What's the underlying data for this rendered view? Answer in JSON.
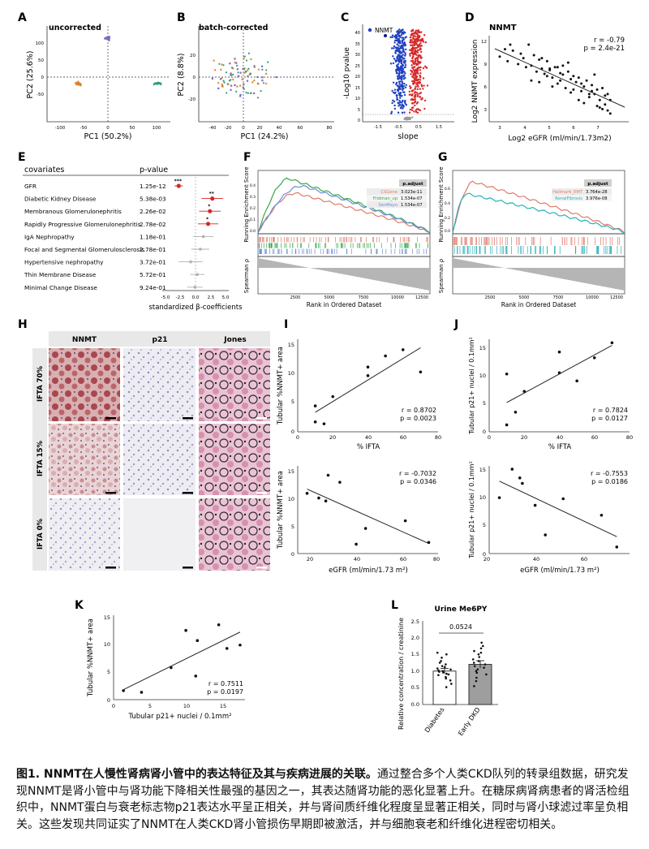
{
  "panels": {
    "A": {
      "letter": "A",
      "title": "uncorrected",
      "xlabel": "PC1 (50.2%)",
      "ylabel": "PC2 (25.6%)",
      "xticks": [
        "-100",
        "-50",
        "0",
        "50",
        "100"
      ],
      "yticks": [
        "100",
        "50",
        "0",
        "-50"
      ]
    },
    "B": {
      "letter": "B",
      "title": "batch-corrected",
      "xlabel": "PC1 (24.2%)",
      "ylabel": "PC2 (8.8%)",
      "xticks": [
        "-40",
        "-20",
        "0",
        "20",
        "40",
        "60",
        "80"
      ],
      "yticks": [
        "20",
        "0",
        "-20"
      ]
    },
    "C": {
      "letter": "C",
      "legend": "NNMT",
      "xlabel": "slope",
      "ylabel": "-Log10 pvalue",
      "yticks": [
        "40",
        "35",
        "30",
        "25",
        "20",
        "15",
        "10",
        "5",
        "0"
      ],
      "xticks": [
        "-1.5",
        "-0.5",
        "0.5",
        "1.5"
      ]
    },
    "D": {
      "letter": "D",
      "title": "NNMT",
      "stat_r": "r = -0.79",
      "stat_p": "p = 2.4e-21",
      "xlabel": "Log2 eGFR (ml/min/1.73m2)",
      "ylabel": "Log2 NNMT expression",
      "xticks": [
        "3",
        "4",
        "5",
        "6",
        "7"
      ],
      "yticks": [
        "12",
        "9",
        "6",
        "3"
      ]
    },
    "E": {
      "letter": "E",
      "col1": "covariates",
      "col2": "p-value",
      "xlabel": "standardized β-coefficients",
      "xticks": [
        "-5.0",
        "-2.5",
        "0.0",
        "2.5",
        "5.0"
      ],
      "rows": [
        {
          "name": "GFR",
          "p": "1.25e-12",
          "sig": "***"
        },
        {
          "name": "Diabetic Kidney Disease",
          "p": "5.38e-03",
          "sig": "**"
        },
        {
          "name": "Membranous Glomerulonephritis",
          "p": "2.26e-02",
          "sig": "*"
        },
        {
          "name": "Rapidly Progressive Glomerulonephritis",
          "p": "2.78e-02",
          "sig": "*"
        },
        {
          "name": "IgA Nephropathy",
          "p": "1.18e-01",
          "sig": ""
        },
        {
          "name": "Focal and Segmental Glomerulosclerosis",
          "p": "2.78e-01",
          "sig": ""
        },
        {
          "name": "Hypertensive nephropathy",
          "p": "3.72e-01",
          "sig": ""
        },
        {
          "name": "Thin Membrane Disease",
          "p": "5.72e-01",
          "sig": ""
        },
        {
          "name": "Minimal Change Disease",
          "p": "9.24e-01",
          "sig": ""
        }
      ]
    },
    "F": {
      "letter": "F",
      "ylabel_top": "Running Enrichment Score",
      "ylabel_bottom": "Spearman ρ",
      "xlabel": "Rank in Ordered Dataset",
      "xticks": [
        "2500",
        "5000",
        "7500",
        "10000",
        "12500"
      ],
      "yticks": [
        "0.4",
        "0.3",
        "0.2",
        "0.1",
        "0.0"
      ],
      "table_header": "p.adjust",
      "table": [
        {
          "name": "CSGene",
          "val": "3.023e-11",
          "color": "#e07a6a"
        },
        {
          "name": "Fridman_up",
          "val": "1.534e-07",
          "color": "#3aa84a"
        },
        {
          "name": "SenMayo",
          "val": "1.534e-07",
          "color": "#6a8ed8"
        }
      ]
    },
    "G": {
      "letter": "G",
      "ylabel_top": "Running Enrichment Score",
      "ylabel_bottom": "Spearman ρ",
      "xlabel": "Rank in Ordered Dataset",
      "xticks": [
        "2500",
        "5000",
        "7500",
        "10000",
        "12500"
      ],
      "yticks": [
        "0.6",
        "0.4",
        "0.2",
        "0.0"
      ],
      "table_header": "p.adjust",
      "table": [
        {
          "name": "Hallmark_EMT",
          "val": "3.764e-28",
          "color": "#e07a6a"
        },
        {
          "name": "RenalFibrosis",
          "val": "3.976e-08",
          "color": "#2ab0b8"
        }
      ]
    },
    "H": {
      "letter": "H",
      "cols": [
        "NNMT",
        "p21",
        "Jones"
      ],
      "rows": [
        "IFTA 70%",
        "IFTA 15%",
        "IFTA 0%"
      ]
    },
    "I": {
      "letter": "I",
      "top": {
        "r": "r = 0.8702",
        "p": "p = 0.0023",
        "xlabel": "% IFTA",
        "ylabel": "Tubular %NNMT+ area",
        "xticks": [
          "0",
          "20",
          "40",
          "60",
          "80"
        ],
        "yticks": [
          "15",
          "10",
          "5",
          "0"
        ]
      },
      "bottom": {
        "r": "r = -0.7032",
        "p": "p = 0.0346",
        "xlabel": "eGFR (ml/min/1.73 m²)",
        "ylabel": "Tubular %NNMT+ area",
        "xticks": [
          "20",
          "40",
          "60",
          "80"
        ],
        "yticks": [
          "15",
          "10",
          "5",
          "0"
        ]
      }
    },
    "J": {
      "letter": "J",
      "top": {
        "r": "r = 0.7824",
        "p": "p = 0.0127",
        "xlabel": "% IFTA",
        "ylabel": "Tubular p21+ nuclei / 0.1mm²",
        "xticks": [
          "0",
          "20",
          "40",
          "60",
          "80"
        ],
        "yticks": [
          "15",
          "10",
          "5",
          "0"
        ]
      },
      "bottom": {
        "r": "r = -0.7553",
        "p": "p = 0.0186",
        "xlabel": "eGFR (ml/min/1.73 m²)",
        "ylabel": "Tubular p21+ nuclei / 0.1mm²",
        "xticks": [
          "20",
          "40",
          "60"
        ],
        "yticks": [
          "15",
          "10",
          "5",
          "0"
        ]
      }
    },
    "K": {
      "letter": "K",
      "r": "r = 0.7511",
      "p": "p = 0.0197",
      "xlabel": "Tubular p21+ nuclei / 0.1mm²",
      "ylabel": "Tubular %NNMT+ area",
      "xticks": [
        "0",
        "5",
        "10",
        "15"
      ],
      "yticks": [
        "15",
        "10",
        "5",
        "0"
      ]
    },
    "L": {
      "letter": "L",
      "title": "Urine Me6PY",
      "pval": "0.0524",
      "ylabel": "Relative concentration / creatinine",
      "groups": [
        "Diabetes",
        "Early DKD"
      ],
      "yticks": [
        "2.5",
        "2.0",
        "1.5",
        "1.0",
        "0.5",
        "0.0"
      ]
    }
  },
  "chart_data": [
    {
      "type": "scatter",
      "panel": "D",
      "title": "NNMT",
      "xlabel": "Log2 eGFR (ml/min/1.73m2)",
      "ylabel": "Log2 NNMT expression",
      "xlim": [
        2.6,
        7.9
      ],
      "ylim": [
        1.5,
        13
      ],
      "x": [
        3.0,
        3.2,
        3.3,
        3.5,
        3.7,
        3.8,
        4.0,
        4.1,
        4.2,
        4.3,
        4.4,
        4.5,
        4.6,
        4.7,
        4.8,
        4.9,
        5.0,
        5.1,
        5.2,
        5.3,
        5.4,
        5.5,
        5.6,
        5.7,
        5.8,
        5.9,
        6.0,
        6.1,
        6.2,
        6.3,
        6.4,
        6.5,
        6.6,
        6.7,
        6.8,
        6.9,
        7.0,
        7.1,
        7.2,
        4.2,
        4.6,
        5.0,
        5.4,
        5.8,
        6.2,
        6.6,
        7.0,
        6.9,
        6.5,
        6.1,
        5.7,
        5.3,
        4.9,
        4.5,
        3.9,
        3.4,
        6.7,
        7.1,
        5.6,
        6.4,
        6.0,
        6.8,
        7.2,
        4.8,
        5.2
      ],
      "y": [
        10.2,
        11.2,
        9.6,
        11.0,
        9.2,
        10.6,
        8.8,
        11.8,
        9.0,
        10.4,
        8.2,
        9.8,
        8.6,
        7.9,
        9.6,
        8.4,
        7.4,
        8.8,
        6.6,
        8.0,
        7.8,
        6.0,
        8.2,
        7.2,
        5.8,
        6.8,
        7.4,
        5.6,
        6.2,
        7.0,
        4.8,
        6.4,
        5.2,
        5.8,
        4.4,
        6.0,
        3.8,
        5.2,
        4.4,
        7.0,
        10.0,
        6.2,
        9.0,
        7.6,
        4.0,
        7.8,
        5.0,
        3.2,
        5.6,
        6.6,
        5.4,
        7.0,
        8.6,
        6.8,
        10.0,
        11.8,
        3.6,
        3.0,
        9.4,
        5.2,
        4.4,
        3.4,
        2.6,
        7.6,
        8.8
      ]
    },
    {
      "type": "scatter",
      "panel": "I-top",
      "xlabel": "% IFTA",
      "ylabel": "Tubular %NNMT+ area",
      "xlim": [
        0,
        80
      ],
      "ylim": [
        0,
        15
      ],
      "x": [
        10,
        10,
        15,
        20,
        40,
        40,
        50,
        60,
        70
      ],
      "y": [
        4.2,
        1.6,
        1.3,
        5.7,
        9.1,
        10.5,
        12.3,
        13.3,
        9.7
      ],
      "r": 0.8702,
      "p": 0.0023
    },
    {
      "type": "scatter",
      "panel": "I-bottom",
      "xlabel": "eGFR (ml/min/1.73 m²)",
      "ylabel": "Tubular %NNMT+ area",
      "xlim": [
        20,
        80
      ],
      "ylim": [
        0,
        15
      ],
      "x": [
        24,
        29,
        32,
        33,
        38,
        45,
        49,
        66,
        76
      ],
      "y": [
        10.3,
        9.5,
        9.0,
        13.4,
        12.2,
        1.6,
        4.3,
        5.6,
        1.9
      ],
      "r": -0.7032,
      "p": 0.0346
    },
    {
      "type": "scatter",
      "panel": "J-top",
      "xlabel": "% IFTA",
      "ylabel": "Tubular p21+ nuclei / 0.1mm²",
      "xlim": [
        0,
        80
      ],
      "ylim": [
        0,
        16
      ],
      "x": [
        10,
        10,
        15,
        20,
        40,
        40,
        50,
        60,
        70
      ],
      "y": [
        10.0,
        1.2,
        3.4,
        7.0,
        13.8,
        10.2,
        8.8,
        12.8,
        15.4
      ],
      "r": 0.7824,
      "p": 0.0127
    },
    {
      "type": "scatter",
      "panel": "J-bottom",
      "xlabel": "eGFR (ml/min/1.73 m²)",
      "ylabel": "Tubular p21+ nuclei / 0.1mm²",
      "xlim": [
        20,
        75
      ],
      "ylim": [
        0,
        16
      ],
      "x": [
        24,
        29,
        32,
        33,
        38,
        42,
        49,
        64,
        70
      ],
      "y": [
        10.2,
        15.4,
        13.8,
        12.8,
        8.8,
        3.4,
        10.0,
        7.0,
        1.2
      ],
      "r": -0.7553,
      "p": 0.0186
    },
    {
      "type": "scatter",
      "panel": "K",
      "xlabel": "Tubular p21+ nuclei / 0.1mm²",
      "ylabel": "Tubular %NNMT+ area",
      "xlim": [
        0,
        16
      ],
      "ylim": [
        0,
        15
      ],
      "x": [
        1.2,
        3.4,
        7.0,
        8.8,
        10.0,
        10.2,
        12.8,
        13.8,
        15.4
      ],
      "y": [
        1.6,
        1.3,
        5.7,
        12.3,
        4.2,
        10.5,
        13.3,
        9.1,
        9.7
      ],
      "r": 0.7511,
      "p": 0.0197
    },
    {
      "type": "bar",
      "panel": "L",
      "title": "Urine Me6PY",
      "categories": [
        "Diabetes",
        "Early DKD"
      ],
      "values": [
        1.0,
        1.2
      ],
      "errors": [
        0.08,
        0.11
      ],
      "ylim": [
        0,
        2.5
      ],
      "ylabel": "Relative concentration / creatinine",
      "comparison_p": "0.0524",
      "points": [
        [
          0.52,
          0.62,
          0.72,
          0.78,
          0.82,
          0.88,
          0.92,
          0.96,
          1.0,
          1.02,
          1.05,
          1.08,
          1.12,
          1.15,
          1.2,
          1.25,
          1.3,
          1.4,
          1.5,
          1.55,
          0.9,
          0.98
        ],
        [
          0.55,
          0.7,
          0.8,
          0.9,
          1.0,
          1.05,
          1.1,
          1.15,
          1.2,
          1.25,
          1.3,
          1.35,
          1.42,
          1.5,
          1.55,
          1.6,
          1.68,
          1.75,
          1.85,
          0.95
        ]
      ]
    },
    {
      "type": "forest",
      "panel": "E",
      "categories": [
        "GFR",
        "Diabetic Kidney Disease",
        "Membranous Glomerulonephritis",
        "Rapidly Progressive Glomerulonephritis",
        "IgA Nephropathy",
        "Focal and Segmental Glomerulosclerosis",
        "Hypertensive nephropathy",
        "Thin Membrane Disease",
        "Minimal Change Disease"
      ],
      "values": [
        -2.8,
        2.8,
        2.4,
        2.1,
        1.3,
        0.8,
        -0.8,
        0.3,
        -0.1
      ],
      "ci_low": [
        -3.5,
        1.0,
        0.6,
        0.4,
        -0.4,
        -0.7,
        -2.8,
        -0.9,
        -1.4
      ],
      "ci_high": [
        -2.1,
        4.6,
        4.2,
        3.8,
        3.0,
        2.3,
        1.2,
        1.5,
        1.2
      ],
      "xlim": [
        -5,
        5
      ],
      "xlabel": "standardized β-coefficients"
    }
  ],
  "caption": {
    "bold": "图1. NNMT在人慢性肾病肾小管中的表达特征及其与疾病进展的关联。",
    "text": "通过整合多个人类CKD队列的转录组数据，研究发现NNMT是肾小管中与肾功能下降相关性最强的基因之一，其表达随肾功能的恶化显著上升。在糖尿病肾病患者的肾活检组织中，NNMT蛋白与衰老标志物p21表达水平呈正相关，并与肾间质纤维化程度呈显著正相关，同时与肾小球滤过率呈负相关。这些发现共同证实了NNMT在人类CKD肾小管损伤早期即被激活，并与细胞衰老和纤维化进程密切相关。"
  },
  "colors": {
    "red": "#d62728",
    "blue": "#1f3fbf",
    "orange": "#d9822b",
    "green": "#2a9d7a",
    "purple": "#7b6cc0",
    "grey": "#9a9a9a"
  }
}
